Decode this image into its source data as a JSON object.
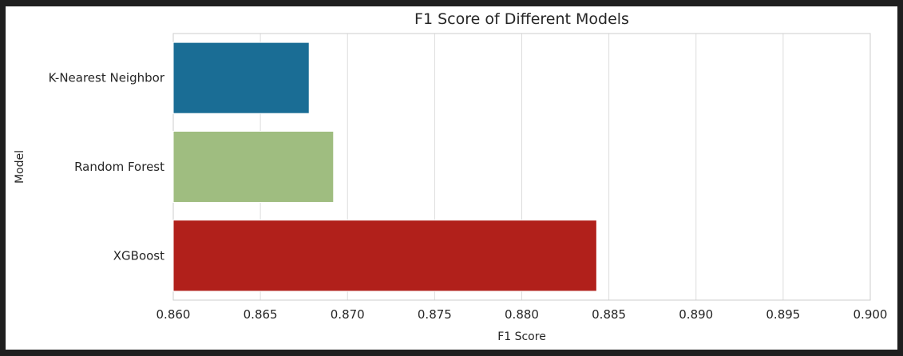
{
  "chart_data": {
    "type": "bar",
    "orientation": "horizontal",
    "title": "F1 Score of Different Models",
    "xlabel": "F1 Score",
    "ylabel": "Model",
    "categories": [
      "K-Nearest Neighbor",
      "Random Forest",
      "XGBoost"
    ],
    "values": [
      0.8678,
      0.8692,
      0.8843
    ],
    "colors": [
      "#1a6d95",
      "#9fbd80",
      "#b1201b"
    ],
    "xlim": [
      0.86,
      0.9
    ],
    "xticks": [
      "0.860",
      "0.865",
      "0.870",
      "0.875",
      "0.880",
      "0.885",
      "0.890",
      "0.895",
      "0.900"
    ],
    "grid": true,
    "grid_axis": "x",
    "legend": "none"
  }
}
